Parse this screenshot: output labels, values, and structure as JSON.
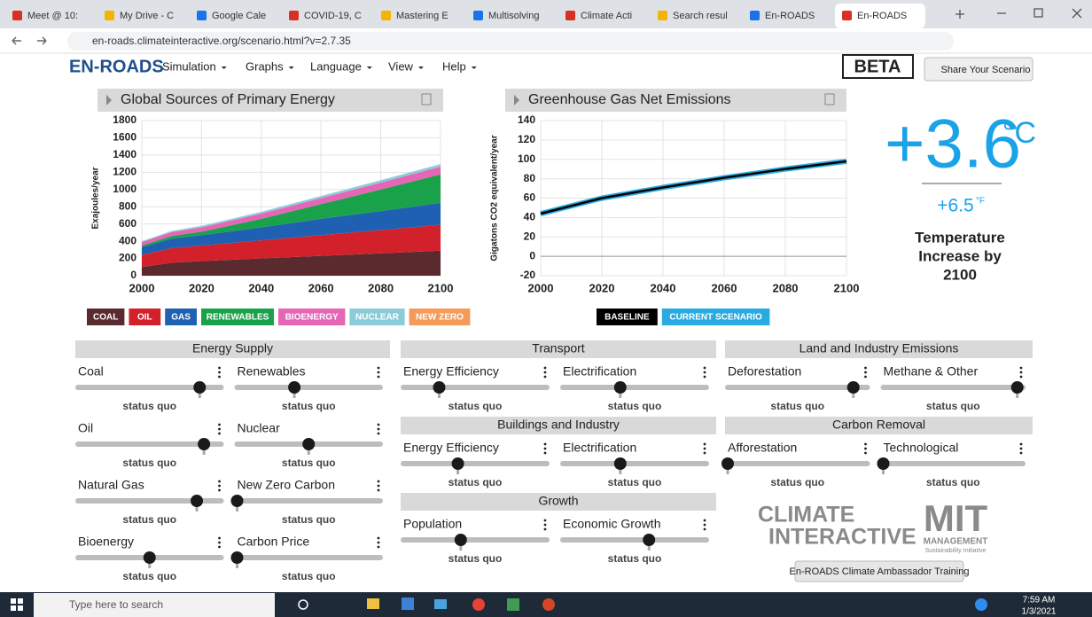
{
  "browser": {
    "tabs": [
      "Meet @ 10:",
      "My Drive - C",
      "Google Cale",
      "COVID-19, C",
      "Mastering E",
      "Multisolving",
      "Climate Acti",
      "Search resul",
      "En-ROADS",
      "En-ROADS"
    ],
    "url": "en-roads.climateinteractive.org/scenario.html?v=2.7.35"
  },
  "nav": {
    "logo": "EN-ROADS",
    "menus": [
      "Simulation",
      "Graphs",
      "Language",
      "View",
      "Help"
    ],
    "beta": "BETA",
    "share": "Share Your Scenario"
  },
  "chart_data": [
    {
      "type": "area",
      "title": "Global Sources of Primary Energy",
      "y_label": "Exajoules/year",
      "x": [
        2000,
        2010,
        2020,
        2040,
        2060,
        2080,
        2100
      ],
      "xlim": [
        2000,
        2100
      ],
      "xticks": [
        2000,
        2020,
        2040,
        2060,
        2080,
        2100
      ],
      "ylim": [
        0,
        1800
      ],
      "yticks": [
        0,
        200,
        400,
        600,
        800,
        1000,
        1200,
        1400,
        1600,
        1800
      ],
      "grid": true,
      "series": [
        {
          "name": "COAL",
          "color": "#5b2a2f",
          "values": [
            100,
            150,
            170,
            200,
            230,
            260,
            290
          ]
        },
        {
          "name": "OIL",
          "color": "#d3212b",
          "values": [
            140,
            170,
            180,
            210,
            240,
            270,
            300
          ]
        },
        {
          "name": "GAS",
          "color": "#1f60b2",
          "values": [
            90,
            110,
            120,
            150,
            190,
            220,
            255
          ]
        },
        {
          "name": "RENEWABLES",
          "color": "#1aa24b",
          "values": [
            20,
            30,
            40,
            100,
            170,
            250,
            330
          ]
        },
        {
          "name": "BIOENERGY",
          "color": "#e466b4",
          "values": [
            40,
            45,
            50,
            60,
            70,
            80,
            90
          ]
        },
        {
          "name": "NUCLEAR",
          "color": "#8ccbd9",
          "values": [
            10,
            15,
            18,
            20,
            25,
            28,
            30
          ]
        },
        {
          "name": "NEW ZERO",
          "color": "#f49b5b",
          "values": [
            0,
            0,
            0,
            0,
            0,
            0,
            0
          ]
        }
      ]
    },
    {
      "type": "line",
      "title": "Greenhouse Gas Net Emissions",
      "y_label": "Gigatons CO2 equivalent/year",
      "x": [
        2000,
        2005,
        2010,
        2020,
        2040,
        2060,
        2080,
        2100
      ],
      "xlim": [
        2000,
        2100
      ],
      "xticks": [
        2000,
        2020,
        2040,
        2060,
        2080,
        2100
      ],
      "ylim": [
        -20,
        140
      ],
      "yticks": [
        -20,
        0,
        20,
        40,
        60,
        80,
        100,
        120,
        140
      ],
      "grid": true,
      "series": [
        {
          "name": "CURRENT SCENARIO",
          "color": "#29abe2",
          "values": [
            44,
            48,
            52,
            60,
            71,
            81,
            90,
            98
          ]
        },
        {
          "name": "BASELINE",
          "color": "#000000",
          "values": [
            44,
            48,
            52,
            60,
            71,
            81,
            90,
            98
          ]
        }
      ]
    }
  ],
  "temperature": {
    "celsius": "+3.6",
    "c_unit": "°C",
    "fahrenheit": "+6.5",
    "f_unit": "°F",
    "caption": [
      "Temperature",
      "Increase by",
      "2100"
    ]
  },
  "panels": [
    {
      "title": "Energy Supply",
      "sliders": [
        {
          "name": "Coal",
          "status": "status quo",
          "position": 0.85
        },
        {
          "name": "Renewables",
          "status": "status quo",
          "position": 0.4
        },
        {
          "name": "Oil",
          "status": "status quo",
          "position": 0.88
        },
        {
          "name": "Nuclear",
          "status": "status quo",
          "position": 0.5
        },
        {
          "name": "Natural Gas",
          "status": "status quo",
          "position": 0.83
        },
        {
          "name": "New Zero Carbon",
          "status": "status quo",
          "position": 0
        },
        {
          "name": "Bioenergy",
          "status": "status quo",
          "position": 0.5
        },
        {
          "name": "Carbon Price",
          "status": "status quo",
          "position": 0
        }
      ]
    },
    {
      "title": "Transport",
      "sliders": [
        {
          "name": "Energy Efficiency",
          "status": "status quo",
          "position": 0.25
        },
        {
          "name": "Electrification",
          "status": "status quo",
          "position": 0.4
        }
      ]
    },
    {
      "title": "Buildings and Industry",
      "sliders": [
        {
          "name": "Energy Efficiency",
          "status": "status quo",
          "position": 0.38
        },
        {
          "name": "Electrification",
          "status": "status quo",
          "position": 0.4
        }
      ]
    },
    {
      "title": "Growth",
      "sliders": [
        {
          "name": "Population",
          "status": "status quo",
          "position": 0.4
        },
        {
          "name": "Economic Growth",
          "status": "status quo",
          "position": 0.6
        }
      ]
    },
    {
      "title": "Land and Industry Emissions",
      "sliders": [
        {
          "name": "Deforestation",
          "status": "status quo",
          "position": 0.9
        },
        {
          "name": "Methane & Other",
          "status": "status quo",
          "position": 0.96
        }
      ]
    },
    {
      "title": "Carbon Removal",
      "sliders": [
        {
          "name": "Afforestation",
          "status": "status quo",
          "position": 0
        },
        {
          "name": "Technological",
          "status": "status quo",
          "position": 0
        }
      ]
    }
  ],
  "logos": {
    "ci": [
      "CLIMATE",
      "INTERACTIVE"
    ],
    "mit": "MIT",
    "mit_sub": "MANAGEMENT",
    "mit_sub2": "Sustainability Initiative"
  },
  "training": "En-ROADS Climate Ambassador Training",
  "taskbar": {
    "search": "Type here to search",
    "time": "7:59 AM",
    "date": "1/3/2021"
  }
}
